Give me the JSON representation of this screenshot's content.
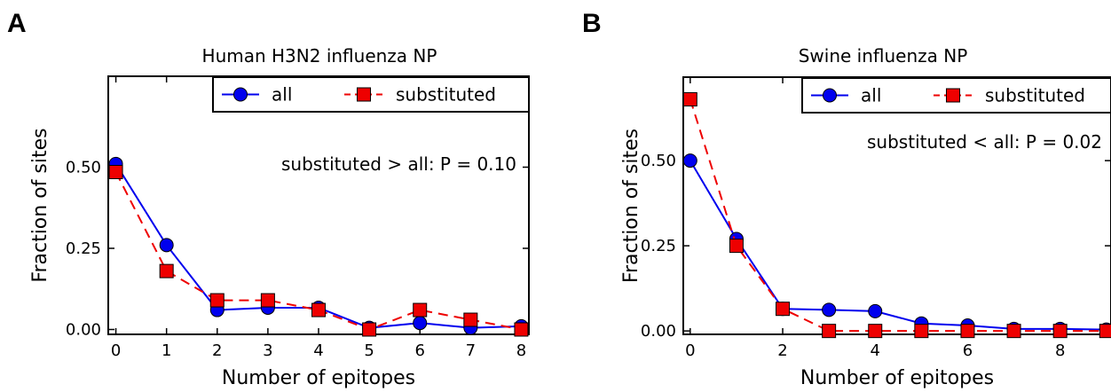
{
  "chart_data": [
    {
      "panel": "A",
      "type": "line",
      "title": "Human H3N2 influenza NP",
      "xlabel": "Number of epitopes",
      "ylabel": "Fraction of sites",
      "xlim": [
        -0.15,
        8.15
      ],
      "ylim": [
        -0.015,
        0.78
      ],
      "xticks": [
        "0",
        "1",
        "2",
        "3",
        "4",
        "5",
        "6",
        "7",
        "8"
      ],
      "yticks": [
        "0.00",
        "0.25",
        "0.50"
      ],
      "annotation": "substituted > all: P = 0.10",
      "legend_position": "top-right",
      "series": [
        {
          "name": "all",
          "color": "#0000ee",
          "linestyle": "solid",
          "marker": "circle",
          "x": [
            0,
            1,
            2,
            3,
            4,
            5,
            6,
            7,
            8
          ],
          "y": [
            0.51,
            0.26,
            0.06,
            0.067,
            0.067,
            0.005,
            0.02,
            0.005,
            0.01
          ]
        },
        {
          "name": "substituted",
          "color": "#ee0000",
          "linestyle": "dashed",
          "marker": "square",
          "x": [
            0,
            1,
            2,
            3,
            4,
            5,
            6,
            7,
            8
          ],
          "y": [
            0.485,
            0.18,
            0.09,
            0.09,
            0.06,
            0.0,
            0.06,
            0.03,
            0.0
          ]
        }
      ]
    },
    {
      "panel": "B",
      "type": "line",
      "title": "Swine influenza NP",
      "xlabel": "Number of epitopes",
      "ylabel": "Fraction of sites",
      "xlim": [
        -0.15,
        9.1
      ],
      "ylim": [
        -0.01,
        0.745
      ],
      "xticks": [
        "0",
        "2",
        "4",
        "6",
        "8"
      ],
      "yticks": [
        "0.00",
        "0.25",
        "0.50"
      ],
      "annotation": "substituted < all: P = 0.02",
      "legend_position": "top-right",
      "series": [
        {
          "name": "all",
          "color": "#0000ee",
          "linestyle": "solid",
          "marker": "circle",
          "x": [
            0,
            1,
            2,
            3,
            4,
            5,
            6,
            7,
            8,
            9
          ],
          "y": [
            0.5,
            0.27,
            0.065,
            0.062,
            0.058,
            0.022,
            0.016,
            0.006,
            0.006,
            0.004
          ]
        },
        {
          "name": "substituted",
          "color": "#ee0000",
          "linestyle": "dashed",
          "marker": "square",
          "x": [
            0,
            1,
            2,
            3,
            4,
            5,
            6,
            7,
            8,
            9
          ],
          "y": [
            0.68,
            0.25,
            0.065,
            0.0,
            0.0,
            0.0,
            0.0,
            0.0,
            0.0,
            0.0
          ]
        }
      ]
    }
  ]
}
